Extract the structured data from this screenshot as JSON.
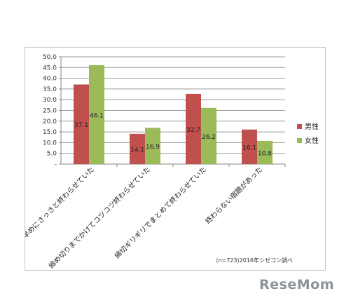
{
  "chart_data": {
    "type": "bar",
    "title": "",
    "xlabel": "",
    "ylabel": "",
    "ylim": [
      0,
      50
    ],
    "yticks": [
      "50.0",
      "45.0",
      "40.0",
      "35.0",
      "30.0",
      "25.0",
      "20.0",
      "15.0",
      "10.0",
      "5.0",
      "-"
    ],
    "grid": true,
    "legend_position": "right",
    "categories": [
      "早めにさっさと終わらせていた",
      "締め切りまでかけてコツコツ終わらせていた",
      "締切ギリギリでまとめて終わらせていた",
      "終わらない宿題があった"
    ],
    "series": [
      {
        "name": "男性",
        "color": "#c0504d",
        "values": [
          37.1,
          14.1,
          32.7,
          16.1
        ]
      },
      {
        "name": "女性",
        "color": "#9bbb59",
        "values": [
          46.1,
          16.9,
          26.2,
          10.8
        ]
      }
    ],
    "footnote": "(n=723)2016年シゼコン調べ"
  },
  "logo": {
    "text": "ReseMom"
  }
}
